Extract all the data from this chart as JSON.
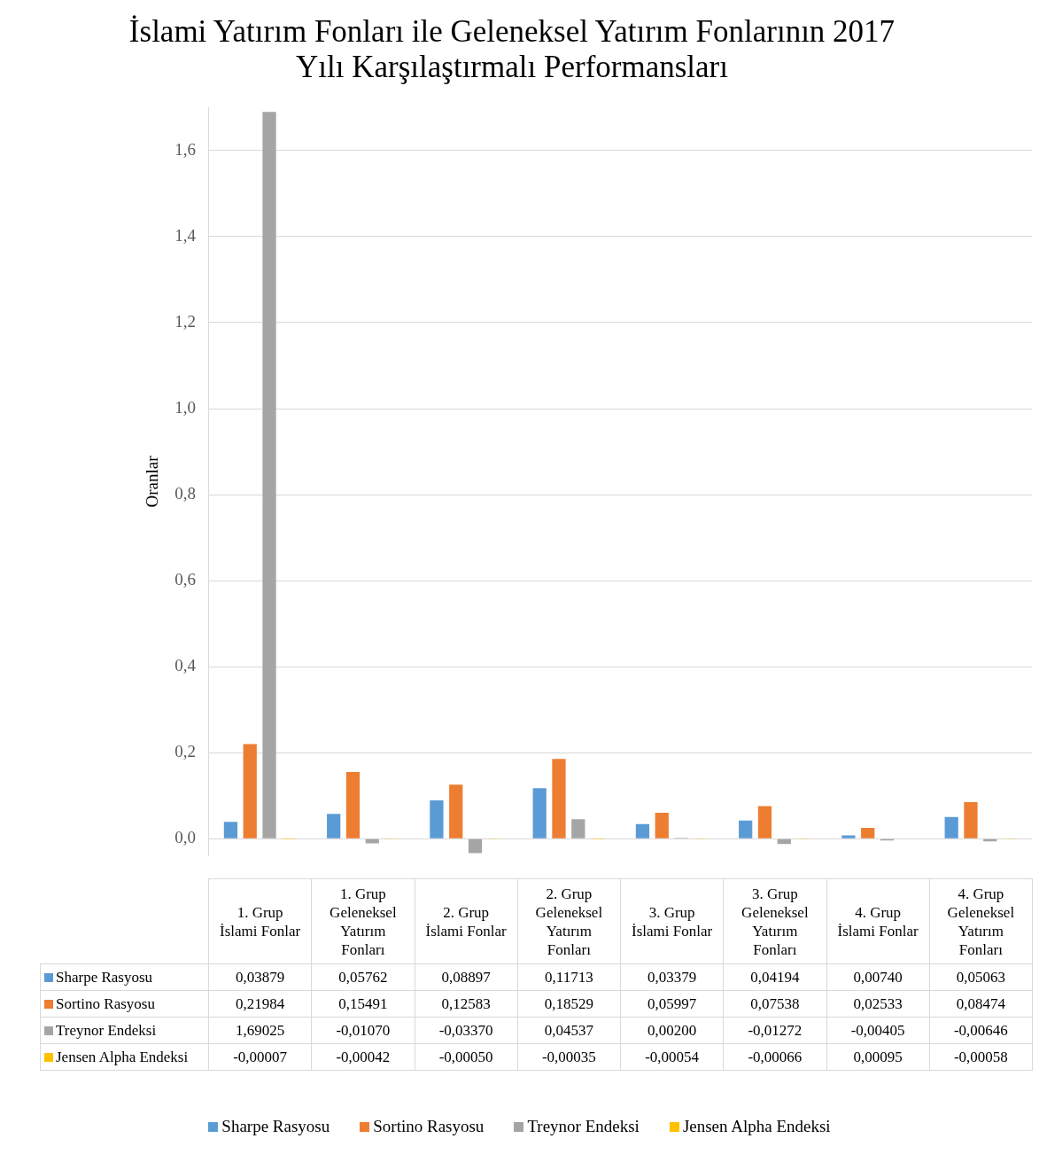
{
  "chart_data": {
    "type": "bar",
    "title": "İslami Yatırım Fonları ile Geleneksel Yatırım Fonlarının 2017 Yılı Karşılaştırmalı Performansları",
    "ylabel": "Oranlar",
    "categories": [
      "1. Grup İslami Fonlar",
      "1. Grup Geleneksel Yatırım Fonları",
      "2. Grup İslami Fonlar",
      "2. Grup Geleneksel Yatırım Fonları",
      "3. Grup İslami Fonlar",
      "3. Grup Geleneksel Yatırım Fonları",
      "4. Grup İslami Fonlar",
      "4. Grup Geleneksel Yatırım Fonları"
    ],
    "series": [
      {
        "name": "Sharpe Rasyosu",
        "color": "#5b9bd5",
        "values": [
          0.03879,
          0.05762,
          0.08897,
          0.11713,
          0.03379,
          0.04194,
          0.0074,
          0.05063
        ],
        "value_labels": [
          "0,03879",
          "0,05762",
          "0,08897",
          "0,11713",
          "0,03379",
          "0,04194",
          "0,00740",
          "0,05063"
        ]
      },
      {
        "name": "Sortino Rasyosu",
        "color": "#ed7d31",
        "values": [
          0.21984,
          0.15491,
          0.12583,
          0.18529,
          0.05997,
          0.07538,
          0.02533,
          0.08474
        ],
        "value_labels": [
          "0,21984",
          "0,15491",
          "0,12583",
          "0,18529",
          "0,05997",
          "0,07538",
          "0,02533",
          "0,08474"
        ]
      },
      {
        "name": "Treynor Endeksi",
        "color": "#a5a5a5",
        "values": [
          1.69025,
          -0.0107,
          -0.0337,
          0.04537,
          0.002,
          -0.01272,
          -0.00405,
          -0.00646
        ],
        "value_labels": [
          "1,69025",
          "-0,01070",
          "-0,03370",
          "0,04537",
          "0,00200",
          "-0,01272",
          "-0,00405",
          "-0,00646"
        ]
      },
      {
        "name": "Jensen Alpha Endeksi",
        "color": "#ffc000",
        "values": [
          -7e-05,
          -0.00042,
          -0.0005,
          -0.00035,
          -0.00054,
          -0.00066,
          0.00095,
          -0.00058
        ],
        "value_labels": [
          "-0,00007",
          "-0,00042",
          "-0,00050",
          "-0,00035",
          "-0,00054",
          "-0,00066",
          "0,00095",
          "-0,00058"
        ]
      }
    ],
    "ylim": [
      -0.04,
      1.7
    ],
    "yticks": [
      {
        "value": 0,
        "label": "0,0"
      },
      {
        "value": 0.2,
        "label": "0,2"
      },
      {
        "value": 0.4,
        "label": "0,4"
      },
      {
        "value": 0.6,
        "label": "0,6"
      },
      {
        "value": 0.8,
        "label": "0,8"
      },
      {
        "value": 1.0,
        "label": "1,0"
      },
      {
        "value": 1.2,
        "label": "1,2"
      },
      {
        "value": 1.4,
        "label": "1,4"
      },
      {
        "value": 1.6,
        "label": "1,6"
      }
    ],
    "grid": "y",
    "legend": "bottom"
  }
}
